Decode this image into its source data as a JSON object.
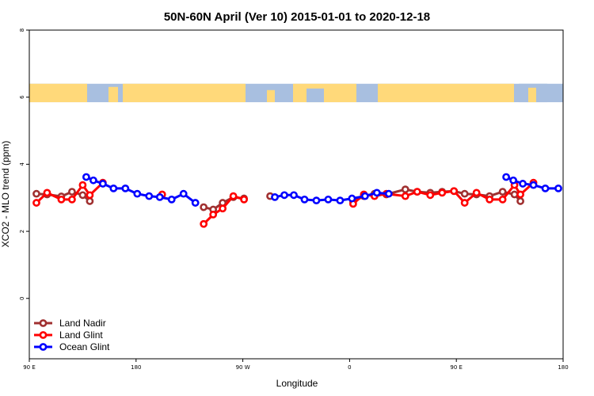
{
  "chart_data": {
    "type": "line",
    "title": "50N-60N April (Ver 10)   2015-01-01 to 2020-12-18",
    "xlabel": "Longitude",
    "ylabel": "XCO2 - MLO trend (ppm)",
    "xlim": [
      90,
      540
    ],
    "ylim": [
      -1.8,
      8.0
    ],
    "x_ticks": [
      {
        "value": 90,
        "label": "90 E"
      },
      {
        "value": 180,
        "label": "180"
      },
      {
        "value": 270,
        "label": "90 W"
      },
      {
        "value": 360,
        "label": "0"
      },
      {
        "value": 450,
        "label": "90 E"
      },
      {
        "value": 540,
        "label": "180"
      }
    ],
    "y_ticks": [
      {
        "value": 0,
        "label": "0"
      },
      {
        "value": 2,
        "label": "2"
      },
      {
        "value": 4,
        "label": "4"
      },
      {
        "value": 6,
        "label": "6"
      },
      {
        "value": 8,
        "label": "8"
      }
    ],
    "map_band": {
      "y_min": 5.85,
      "y_max": 6.4,
      "land_color": "#ffd97a",
      "ocean_color": "#a8bfe0"
    },
    "legend_position": "bottom-left",
    "series": [
      {
        "name": "Land Nadir",
        "color": "#a03030",
        "segments": [
          [
            [
              96,
              3.12
            ],
            [
              105,
              3.1
            ],
            [
              117,
              3.04
            ],
            [
              126,
              3.18
            ],
            [
              135,
              3.08
            ],
            [
              141,
              2.9
            ]
          ],
          [
            [
              237,
              2.72
            ],
            [
              245,
              2.65
            ],
            [
              253,
              2.85
            ],
            [
              262,
              3.02
            ],
            [
              271,
              2.98
            ]
          ],
          [
            [
              293,
              3.05
            ]
          ],
          [
            [
              363,
              2.88
            ],
            [
              372,
              3.05
            ],
            [
              381,
              3.12
            ],
            [
              391,
              3.1
            ],
            [
              407,
              3.25
            ],
            [
              417,
              3.18
            ],
            [
              428,
              3.15
            ],
            [
              438,
              3.18
            ],
            [
              448,
              3.2
            ],
            [
              457,
              3.12
            ],
            [
              467,
              3.1
            ],
            [
              478,
              3.05
            ],
            [
              489,
              3.18
            ],
            [
              499,
              3.1
            ],
            [
              504,
              2.9
            ]
          ]
        ]
      },
      {
        "name": "Land Glint",
        "color": "#ff0000",
        "segments": [
          [
            [
              96,
              2.85
            ],
            [
              105,
              3.15
            ],
            [
              117,
              2.95
            ],
            [
              126,
              2.95
            ],
            [
              135,
              3.38
            ],
            [
              141,
              3.08
            ],
            [
              152,
              3.45
            ]
          ],
          [
            [
              202,
              3.1
            ]
          ],
          [
            [
              237,
              2.22
            ],
            [
              245,
              2.5
            ],
            [
              253,
              2.68
            ],
            [
              262,
              3.05
            ],
            [
              271,
              2.95
            ]
          ],
          [
            [
              363,
              2.82
            ],
            [
              372,
              3.1
            ],
            [
              381,
              3.05
            ],
            [
              391,
              3.12
            ],
            [
              407,
              3.05
            ],
            [
              417,
              3.18
            ],
            [
              428,
              3.08
            ],
            [
              438,
              3.15
            ],
            [
              448,
              3.2
            ],
            [
              457,
              2.85
            ],
            [
              467,
              3.15
            ],
            [
              478,
              2.95
            ],
            [
              489,
              2.95
            ],
            [
              499,
              3.38
            ],
            [
              504,
              3.1
            ],
            [
              515,
              3.45
            ]
          ]
        ]
      },
      {
        "name": "Ocean Glint",
        "color": "#0000ff",
        "segments": [
          [
            [
              138,
              3.62
            ],
            [
              144,
              3.52
            ],
            [
              152,
              3.42
            ],
            [
              161,
              3.28
            ],
            [
              171,
              3.28
            ],
            [
              181,
              3.12
            ],
            [
              191,
              3.05
            ],
            [
              200,
              3.02
            ],
            [
              210,
              2.95
            ],
            [
              220,
              3.12
            ],
            [
              230,
              2.85
            ]
          ],
          [
            [
              297,
              3.02
            ],
            [
              305,
              3.08
            ],
            [
              313,
              3.08
            ],
            [
              322,
              2.95
            ],
            [
              332,
              2.92
            ],
            [
              342,
              2.95
            ],
            [
              352,
              2.92
            ],
            [
              362,
              2.98
            ],
            [
              373,
              3.05
            ],
            [
              383,
              3.15
            ],
            [
              393,
              3.12
            ]
          ],
          [
            [
              492,
              3.62
            ],
            [
              498,
              3.52
            ],
            [
              506,
              3.42
            ],
            [
              515,
              3.38
            ],
            [
              525,
              3.28
            ],
            [
              536,
              3.28
            ]
          ]
        ]
      }
    ]
  }
}
